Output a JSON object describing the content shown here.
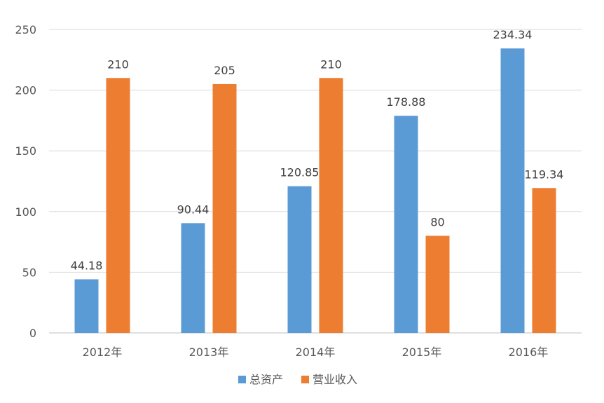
{
  "chart_data": {
    "type": "bar",
    "title": "",
    "xlabel": "",
    "ylabel": "",
    "categories": [
      "2012年",
      "2013年",
      "2014年",
      "2015年",
      "2016年"
    ],
    "series": [
      {
        "name": "总资产",
        "color": "#5B9BD5",
        "values": [
          44.18,
          90.44,
          120.85,
          178.88,
          234.34
        ],
        "labels": [
          "44.18",
          "90.44",
          "120.85",
          "178.88",
          "234.34"
        ]
      },
      {
        "name": "营业收入",
        "color": "#ED7D31",
        "values": [
          210,
          205,
          210,
          80,
          119.34
        ],
        "labels": [
          "210",
          "205",
          "210",
          "80",
          "119.34"
        ]
      }
    ],
    "ylim": [
      0,
      250
    ],
    "yticks": [
      0,
      50,
      100,
      150,
      200,
      250
    ],
    "grid": true,
    "legend_position": "bottom"
  }
}
